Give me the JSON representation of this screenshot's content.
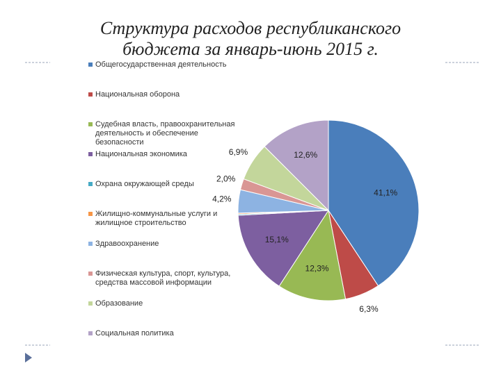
{
  "chart_data": {
    "type": "pie",
    "title": "Структура расходов республиканского бюджета за январь-июнь 2015 г.",
    "categories": [
      "Общегосударственная деятельность",
      "Национальная оборона",
      "Судебная власть, правоохранительная деятельность и обеспечение безопасности",
      "Национальная экономика",
      "Охрана окружающей среды",
      "Жилищно-коммунальные услуги и жилищное строительство",
      "Здравоохранение",
      "Физическая культура, спорт, культура, средства массовой информации",
      "Образование",
      "Социальная политика"
    ],
    "values": [
      41.1,
      6.3,
      12.3,
      15.1,
      0.2,
      0.2,
      4.2,
      2.0,
      6.9,
      12.6
    ],
    "value_labels": [
      "41,1%",
      "6,3%",
      "12,3%",
      "15,1%",
      null,
      null,
      "4,2%",
      "2,0%",
      "6,9%",
      "12,6%"
    ],
    "colors": [
      "#4a7ebb",
      "#be4b48",
      "#98b954",
      "#7d5fa0",
      "#46aac5",
      "#f79646",
      "#8db3e2",
      "#d99694",
      "#c3d69b",
      "#b3a2c7"
    ]
  }
}
